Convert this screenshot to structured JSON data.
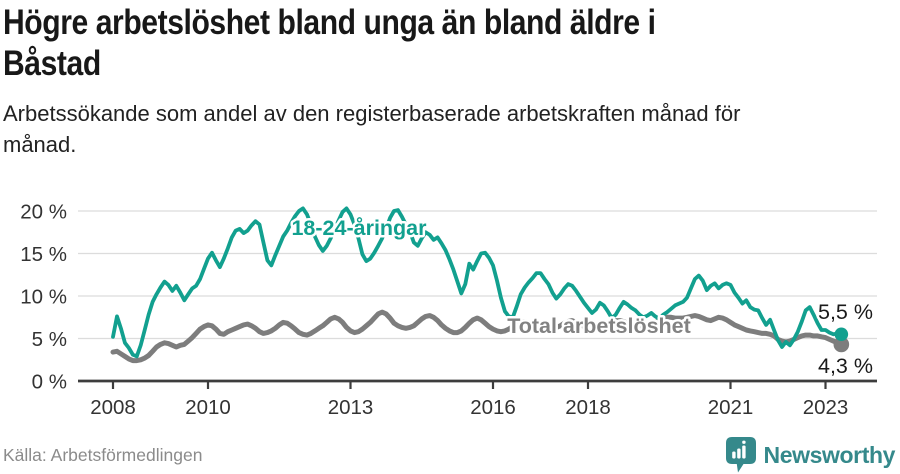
{
  "page": {
    "header": {
      "title": "Högre arbetslöshet bland unga än bland äldre i Båstad",
      "title_lines": [
        "Högre arbetslöshet bland unga än bland äldre i",
        "Båstad"
      ],
      "subtitle": "Arbetssökande som andel av den registerbaserade arbetskraften månad för månad.",
      "subtitle_lines": [
        "Arbetssökande som andel av den registerbaserade arbetskraften månad för",
        "månad."
      ]
    },
    "footer": {
      "source": "Källa: Arbetsförmedlingen",
      "brand": "Newsworthy"
    }
  },
  "chart_data": {
    "type": "line",
    "unit": "%",
    "frequency": "monthly",
    "x_start_year": 2008,
    "x_start_month": 1,
    "ylim": [
      0,
      21.5
    ],
    "grid": "horizontal",
    "yticks": [
      {
        "value": 0,
        "label": "0 %"
      },
      {
        "value": 5,
        "label": "5 %"
      },
      {
        "value": 10,
        "label": "10 %"
      },
      {
        "value": 15,
        "label": "15 %"
      },
      {
        "value": 20,
        "label": "20 %"
      }
    ],
    "xticks": [
      {
        "value": 2008,
        "label": "2008"
      },
      {
        "value": 2010,
        "label": "2010"
      },
      {
        "value": 2013,
        "label": "2013"
      },
      {
        "value": 2016,
        "label": "2016"
      },
      {
        "value": 2018,
        "label": "2018"
      },
      {
        "value": 2021,
        "label": "2021"
      },
      {
        "value": 2023,
        "label": "2023"
      }
    ],
    "colors": {
      "youth": "#12a08f",
      "total": "#7d7d7d",
      "total_label": "#828282",
      "axis": "#3d3d3d",
      "gridline": "#dcdcdc",
      "end_label_text": "#1a1a1a",
      "brand_teal": "#35898b"
    },
    "series": [
      {
        "id": "youth",
        "name": "18-24-åringar",
        "color": "#12a08f",
        "end_value": 5.5,
        "end_label": "5,5 %",
        "values": [
          5.2,
          7.6,
          6.2,
          4.5,
          3.9,
          3.1,
          2.9,
          4.2,
          6.0,
          7.8,
          9.3,
          10.2,
          11.0,
          11.7,
          11.3,
          10.6,
          11.2,
          10.4,
          9.5,
          10.2,
          10.9,
          11.2,
          12.0,
          13.2,
          14.4,
          15.1,
          14.2,
          13.4,
          14.4,
          15.6,
          16.9,
          17.7,
          17.9,
          17.4,
          17.7,
          18.3,
          18.8,
          18.4,
          16.3,
          14.2,
          13.6,
          14.8,
          15.9,
          17.0,
          17.7,
          18.6,
          19.4,
          20.0,
          20.3,
          19.6,
          18.4,
          17.0,
          16.0,
          15.3,
          15.9,
          16.8,
          17.8,
          18.9,
          19.9,
          20.3,
          19.6,
          18.4,
          16.8,
          14.9,
          14.1,
          14.4,
          15.1,
          15.9,
          16.8,
          17.9,
          19.2,
          20.0,
          20.1,
          19.3,
          18.4,
          17.6,
          16.3,
          15.9,
          16.8,
          17.5,
          17.2,
          16.6,
          16.9,
          16.2,
          15.4,
          14.3,
          13.1,
          11.7,
          10.3,
          11.4,
          13.8,
          13.1,
          14.1,
          15.0,
          15.1,
          14.5,
          13.6,
          11.8,
          9.8,
          8.2,
          7.6,
          7.5,
          8.8,
          10.2,
          11.0,
          11.6,
          12.1,
          12.7,
          12.7,
          12.0,
          11.4,
          10.4,
          9.7,
          10.2,
          10.9,
          11.4,
          11.2,
          10.6,
          9.9,
          9.2,
          8.6,
          8.0,
          8.4,
          9.2,
          8.9,
          8.2,
          7.4,
          7.8,
          8.6,
          9.3,
          9.0,
          8.6,
          8.3,
          7.8,
          7.5,
          7.7,
          8.0,
          7.6,
          7.3,
          7.8,
          8.1,
          8.5,
          8.9,
          9.1,
          9.3,
          9.8,
          10.9,
          12.0,
          12.4,
          11.8,
          10.7,
          11.2,
          11.5,
          10.9,
          11.3,
          11.5,
          11.3,
          10.4,
          9.8,
          9.1,
          9.5,
          8.7,
          8.4,
          8.3,
          7.4,
          6.6,
          7.2,
          6.0,
          4.8,
          4.0,
          4.6,
          4.2,
          4.9,
          5.8,
          7.0,
          8.3,
          8.7,
          7.8,
          6.8,
          6.0,
          6.0,
          5.7,
          5.5,
          5.6,
          5.5
        ]
      },
      {
        "id": "total",
        "name": "Total arbetslöshet",
        "color": "#7d7d7d",
        "end_value": 4.3,
        "end_label": "4,3 %",
        "values": [
          3.4,
          3.5,
          3.2,
          2.9,
          2.6,
          2.4,
          2.4,
          2.5,
          2.7,
          3.0,
          3.5,
          4.0,
          4.3,
          4.5,
          4.4,
          4.2,
          4.0,
          4.2,
          4.3,
          4.7,
          5.1,
          5.6,
          6.1,
          6.4,
          6.6,
          6.5,
          6.1,
          5.6,
          5.5,
          5.8,
          6.0,
          6.2,
          6.4,
          6.6,
          6.7,
          6.5,
          6.2,
          5.8,
          5.6,
          5.7,
          5.9,
          6.2,
          6.6,
          6.9,
          6.8,
          6.5,
          6.1,
          5.7,
          5.5,
          5.4,
          5.6,
          5.9,
          6.2,
          6.5,
          6.9,
          7.3,
          7.5,
          7.3,
          6.9,
          6.3,
          5.9,
          5.7,
          5.8,
          6.1,
          6.5,
          6.9,
          7.4,
          7.9,
          8.1,
          7.9,
          7.4,
          6.8,
          6.5,
          6.3,
          6.2,
          6.3,
          6.5,
          6.9,
          7.3,
          7.6,
          7.7,
          7.5,
          7.1,
          6.6,
          6.2,
          5.9,
          5.7,
          5.7,
          5.9,
          6.3,
          6.8,
          7.2,
          7.4,
          7.2,
          6.8,
          6.4,
          6.1,
          5.9,
          5.8,
          5.9,
          6.1,
          6.4,
          6.7,
          6.9,
          7.0,
          6.9,
          6.6,
          6.3,
          6.1,
          6.0,
          6.0,
          6.1,
          6.3,
          6.5,
          6.8,
          7.0,
          7.1,
          6.9,
          6.7,
          6.4,
          6.3,
          6.2,
          6.2,
          6.3,
          6.5,
          6.7,
          6.9,
          7.1,
          7.1,
          7.0,
          6.8,
          6.6,
          6.5,
          6.4,
          6.4,
          6.5,
          6.7,
          6.9,
          7.2,
          7.4,
          7.5,
          7.5,
          7.4,
          7.4,
          7.4,
          7.5,
          7.6,
          7.7,
          7.6,
          7.4,
          7.2,
          7.1,
          7.3,
          7.5,
          7.4,
          7.2,
          6.9,
          6.6,
          6.4,
          6.2,
          6.0,
          5.9,
          5.8,
          5.7,
          5.6,
          5.6,
          5.5,
          5.3,
          4.9,
          4.7,
          4.6,
          4.7,
          4.9,
          5.1,
          5.3,
          5.4,
          5.4,
          5.3,
          5.3,
          5.2,
          5.1,
          4.9,
          4.7,
          4.5,
          4.3
        ]
      }
    ]
  }
}
